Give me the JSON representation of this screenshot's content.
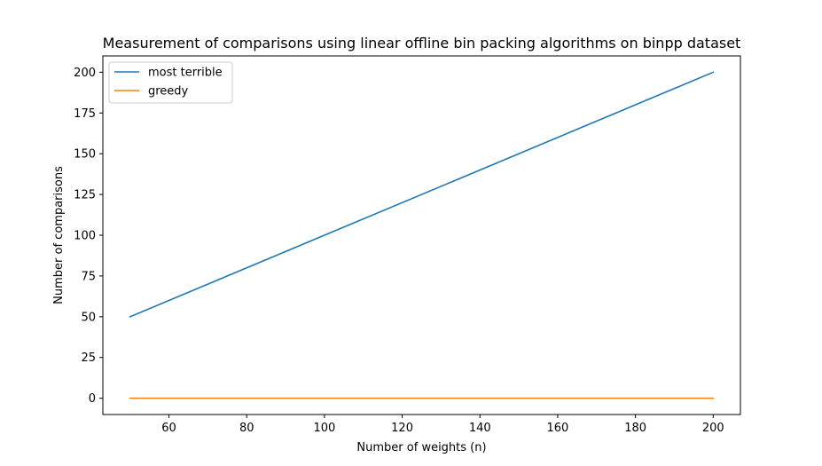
{
  "chart_data": {
    "type": "line",
    "title": "Measurement of comparisons using linear offline bin packing algorithms on binpp dataset",
    "xlabel": "Number of weights (n)",
    "ylabel": "Number of comparisons",
    "xlim": [
      43,
      207
    ],
    "ylim": [
      -10,
      210
    ],
    "xticks": [
      60,
      80,
      100,
      120,
      140,
      160,
      180,
      200
    ],
    "yticks": [
      0,
      25,
      50,
      75,
      100,
      125,
      150,
      175,
      200
    ],
    "grid": false,
    "legend_position": "upper-left",
    "series": [
      {
        "name": "most terrible",
        "color": "#1f77b4",
        "x": [
          50,
          200
        ],
        "y": [
          50,
          200
        ]
      },
      {
        "name": "greedy",
        "color": "#ff7f0e",
        "x": [
          50,
          200
        ],
        "y": [
          0,
          0
        ]
      }
    ]
  }
}
